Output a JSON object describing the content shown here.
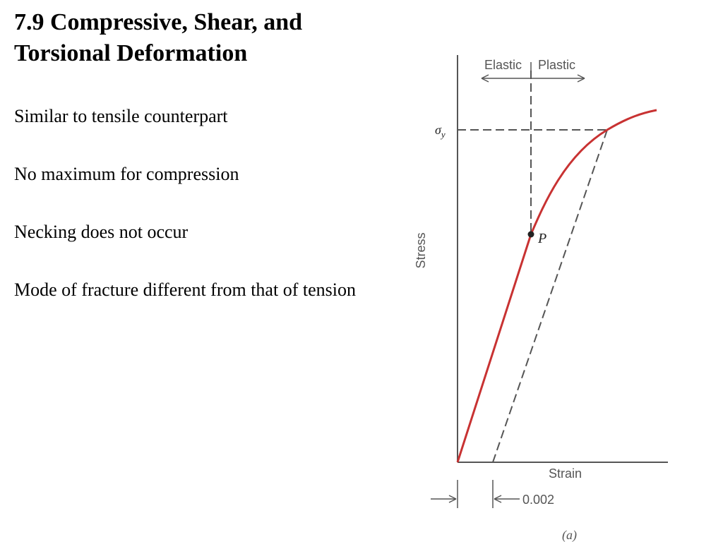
{
  "slide": {
    "title_lines": [
      "7.9 Compressive, Shear, and",
      "Torsional Deformation"
    ],
    "bullets": [
      "Similar to tensile counterpart",
      "No maximum for compression",
      "Necking does not occur",
      "Mode of fracture different from that of tension"
    ]
  },
  "figure": {
    "region_elastic": "Elastic",
    "region_plastic": "Plastic",
    "yield_symbol": "σ",
    "yield_subscript": "y",
    "point_label": "P",
    "x_axis_label": "Strain",
    "y_axis_label": "Stress",
    "offset_label": "0.002",
    "caption": "(a)",
    "colors": {
      "curve": "#c83232",
      "axes": "#555555",
      "dashed": "#555555"
    }
  }
}
